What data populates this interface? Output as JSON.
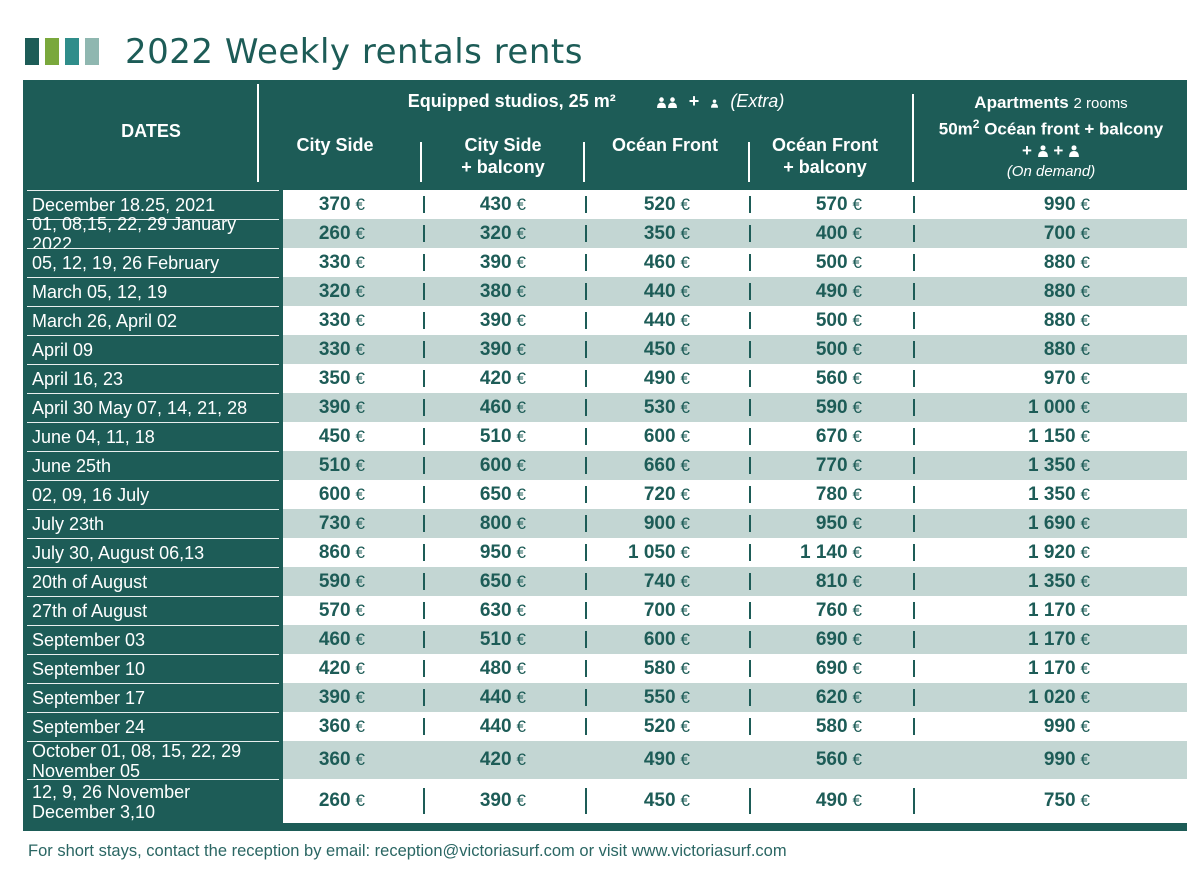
{
  "title": "2022 Weekly rentals rents",
  "swatch_colors": [
    "#1d5c57",
    "#7aa83c",
    "#2f8d8a",
    "#8fb7b0"
  ],
  "header": {
    "dates": "DATES",
    "studios_group": "Equipped studios, 25 m²",
    "studios_persons_suffix": "+",
    "studios_extra": "(Extra)",
    "studios_icons": [
      "person-pair-icon",
      "person-icon"
    ],
    "columns": [
      {
        "line1": "City Side",
        "line2": ""
      },
      {
        "line1": "City Side",
        "line2": "+ balcony"
      },
      {
        "line1": "Océan Front",
        "line2": ""
      },
      {
        "line1": "Océan Front",
        "line2": "+ balcony"
      }
    ],
    "apartments": {
      "bold": "Apartments",
      "rooms": "2 rooms",
      "line2_prefix": "50m",
      "line2_sup": "2",
      "line2_rest": " Océan front + balcony",
      "plus": "+",
      "on_demand": "(On demand)"
    }
  },
  "currency": "€",
  "rows": [
    {
      "date": "December 18.25, 2021",
      "values": [
        "370",
        "430",
        "520",
        "570",
        "990"
      ]
    },
    {
      "date": "01, 08,15, 22, 29 January 2022",
      "values": [
        "260",
        "320",
        "350",
        "400",
        "700"
      ]
    },
    {
      "date": "05, 12, 19, 26 February",
      "values": [
        "330",
        "390",
        "460",
        "500",
        "880"
      ]
    },
    {
      "date": "March 05, 12, 19",
      "values": [
        "320",
        "380",
        "440",
        "490",
        "880"
      ]
    },
    {
      "date": "March 26, April 02",
      "values": [
        "330",
        "390",
        "440",
        "500",
        "880"
      ]
    },
    {
      "date": "April 09",
      "values": [
        "330",
        "390",
        "450",
        "500",
        "880"
      ]
    },
    {
      "date": "April 16, 23",
      "values": [
        "350",
        "420",
        "490",
        "560",
        "970"
      ]
    },
    {
      "date": "April 30 May 07, 14, 21, 28",
      "values": [
        "390",
        "460",
        "530",
        "590",
        "1 000"
      ]
    },
    {
      "date": "June 04, 11, 18",
      "values": [
        "450",
        "510",
        "600",
        "670",
        "1 150"
      ]
    },
    {
      "date": "June 25th",
      "values": [
        "510",
        "600",
        "660",
        "770",
        "1 350"
      ]
    },
    {
      "date": "02, 09, 16 July",
      "values": [
        "600",
        "650",
        "720",
        "780",
        "1 350"
      ]
    },
    {
      "date": "July 23th",
      "values": [
        "730",
        "800",
        "900",
        "950",
        "1 690"
      ]
    },
    {
      "date": "July 30, August 06,13",
      "values": [
        "860",
        "950",
        "1 050",
        "1 140",
        "1 920"
      ]
    },
    {
      "date": "20th of August",
      "values": [
        "590",
        "650",
        "740",
        "810",
        "1 350"
      ]
    },
    {
      "date": "27th of August",
      "values": [
        "570",
        "630",
        "700",
        "760",
        "1 170"
      ]
    },
    {
      "date": "September 03",
      "values": [
        "460",
        "510",
        "600",
        "690",
        "1 170"
      ]
    },
    {
      "date": "September 10",
      "values": [
        "420",
        "480",
        "580",
        "690",
        "1 170"
      ]
    },
    {
      "date": "September 17",
      "values": [
        "390",
        "440",
        "550",
        "620",
        "1 020"
      ]
    },
    {
      "date": "September 24",
      "values": [
        "360",
        "440",
        "520",
        "580",
        "990"
      ]
    },
    {
      "date": "October 01, 08, 15, 22, 29\nNovember 05",
      "values": [
        "360",
        "420",
        "490",
        "560",
        "990"
      ]
    },
    {
      "date": "12, 9, 26 November\nDecember 3,10",
      "values": [
        "260",
        "390",
        "450",
        "490",
        "750"
      ]
    }
  ],
  "footer": "For short stays, contact the reception by email: reception@victoriasurf.com or visit www.victoriasurf.com"
}
